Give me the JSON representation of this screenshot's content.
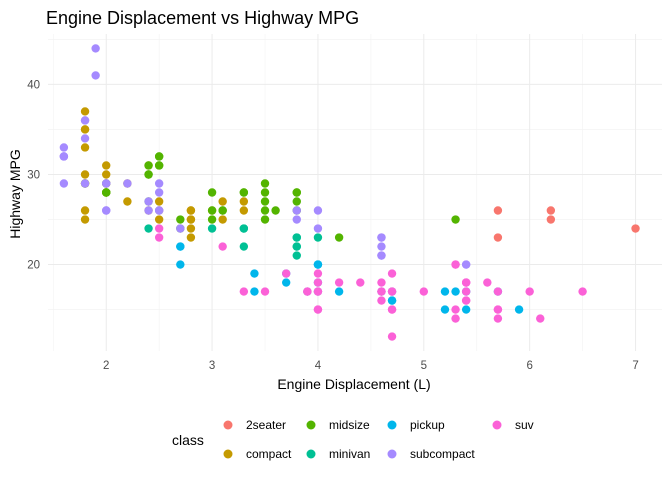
{
  "chart_data": {
    "type": "scatter",
    "title": "Engine Displacement vs Highway MPG",
    "xlabel": "Engine Displacement (L)",
    "ylabel": "Highway MPG",
    "xlim": [
      1.45,
      7.25
    ],
    "ylim": [
      10.4,
      45.6
    ],
    "x_ticks": [
      2,
      3,
      4,
      5,
      6,
      7
    ],
    "y_ticks": [
      20,
      30,
      40
    ],
    "grid": true,
    "legend": {
      "title": "class",
      "position": "bottom"
    },
    "series": [
      {
        "name": "2seater",
        "color": "#F8766D",
        "points": [
          [
            5.7,
            26
          ],
          [
            5.7,
            23
          ],
          [
            6.2,
            26
          ],
          [
            6.2,
            25
          ],
          [
            7.0,
            24
          ]
        ]
      },
      {
        "name": "compact",
        "color": "#C49A00",
        "points": [
          [
            1.8,
            29
          ],
          [
            1.8,
            29
          ],
          [
            2.0,
            31
          ],
          [
            2.0,
            30
          ],
          [
            2.8,
            26
          ],
          [
            2.8,
            26
          ],
          [
            3.1,
            27
          ],
          [
            1.8,
            26
          ],
          [
            1.8,
            25
          ],
          [
            2.0,
            28
          ],
          [
            2.0,
            28
          ],
          [
            2.8,
            25
          ],
          [
            2.8,
            25
          ],
          [
            3.1,
            25
          ],
          [
            1.8,
            30
          ],
          [
            1.8,
            33
          ],
          [
            1.8,
            35
          ],
          [
            1.8,
            37
          ],
          [
            1.8,
            35
          ],
          [
            2.0,
            29
          ],
          [
            2.0,
            29
          ],
          [
            2.8,
            23
          ],
          [
            2.8,
            24
          ],
          [
            2.2,
            27
          ],
          [
            2.2,
            29
          ],
          [
            2.4,
            31
          ],
          [
            2.4,
            26
          ],
          [
            3.0,
            26
          ],
          [
            3.3,
            26
          ],
          [
            3.3,
            27
          ],
          [
            2.5,
            25
          ],
          [
            2.5,
            27
          ],
          [
            2.5,
            26
          ]
        ]
      },
      {
        "name": "midsize",
        "color": "#53B400",
        "points": [
          [
            1.8,
            29
          ],
          [
            2.4,
            27
          ],
          [
            2.4,
            30
          ],
          [
            3.1,
            26
          ],
          [
            3.5,
            29
          ],
          [
            3.6,
            26
          ],
          [
            2.4,
            31
          ],
          [
            2.4,
            30
          ],
          [
            3.3,
            28
          ],
          [
            3.3,
            28
          ],
          [
            3.8,
            26
          ],
          [
            3.8,
            28
          ],
          [
            3.8,
            27
          ],
          [
            5.3,
            25
          ],
          [
            2.0,
            28
          ],
          [
            2.0,
            28
          ],
          [
            3.0,
            26
          ],
          [
            2.5,
            32
          ],
          [
            2.5,
            31
          ],
          [
            3.5,
            27
          ],
          [
            3.5,
            25
          ],
          [
            2.7,
            25
          ],
          [
            2.7,
            24
          ],
          [
            3.1,
            26
          ],
          [
            2.0,
            28
          ],
          [
            2.0,
            29
          ],
          [
            2.5,
            32
          ],
          [
            2.5,
            31
          ],
          [
            4.2,
            23
          ],
          [
            3.0,
            25
          ],
          [
            3.5,
            26
          ],
          [
            3.5,
            28
          ],
          [
            3.0,
            28
          ],
          [
            3.8,
            28
          ]
        ]
      },
      {
        "name": "minivan",
        "color": "#00C094",
        "points": [
          [
            2.4,
            24
          ],
          [
            3.0,
            24
          ],
          [
            3.3,
            22
          ],
          [
            3.3,
            24
          ],
          [
            3.8,
            22
          ],
          [
            3.8,
            21
          ],
          [
            3.3,
            24
          ],
          [
            3.8,
            23
          ],
          [
            3.8,
            22
          ],
          [
            3.8,
            23
          ],
          [
            4.0,
            23
          ]
        ]
      },
      {
        "name": "pickup",
        "color": "#00B6EB",
        "points": [
          [
            3.7,
            19
          ],
          [
            3.7,
            18
          ],
          [
            3.9,
            17
          ],
          [
            4.7,
            17
          ],
          [
            4.7,
            16
          ],
          [
            4.7,
            16
          ],
          [
            5.2,
            15
          ],
          [
            5.2,
            17
          ],
          [
            5.7,
            17
          ],
          [
            5.9,
            15
          ],
          [
            4.0,
            20
          ],
          [
            4.0,
            18
          ],
          [
            4.6,
            17
          ],
          [
            5.4,
            15
          ],
          [
            5.4,
            17
          ],
          [
            2.7,
            20
          ],
          [
            2.7,
            22
          ],
          [
            3.4,
            17
          ],
          [
            3.4,
            19
          ],
          [
            4.0,
            17
          ],
          [
            4.0,
            20
          ],
          [
            4.0,
            20
          ],
          [
            5.3,
            17
          ],
          [
            2.7,
            22
          ],
          [
            4.2,
            17
          ]
        ]
      },
      {
        "name": "subcompact",
        "color": "#A58AFF",
        "points": [
          [
            1.6,
            33
          ],
          [
            1.6,
            32
          ],
          [
            1.6,
            32
          ],
          [
            1.6,
            29
          ],
          [
            1.6,
            32
          ],
          [
            1.8,
            34
          ],
          [
            1.8,
            36
          ],
          [
            1.8,
            36
          ],
          [
            2.0,
            29
          ],
          [
            2.4,
            26
          ],
          [
            2.4,
            27
          ],
          [
            2.0,
            26
          ],
          [
            2.0,
            29
          ],
          [
            2.5,
            26
          ],
          [
            2.5,
            28
          ],
          [
            2.7,
            24
          ],
          [
            3.8,
            26
          ],
          [
            3.8,
            25
          ],
          [
            4.0,
            26
          ],
          [
            4.0,
            24
          ],
          [
            4.6,
            21
          ],
          [
            4.6,
            22
          ],
          [
            4.6,
            23
          ],
          [
            5.4,
            20
          ],
          [
            1.9,
            44
          ],
          [
            1.9,
            41
          ],
          [
            2.2,
            29
          ],
          [
            2.0,
            26
          ],
          [
            2.5,
            29
          ],
          [
            1.8,
            29
          ],
          [
            4.6,
            21
          ],
          [
            4.6,
            23
          ],
          [
            5.4,
            20
          ],
          [
            2.5,
            26
          ]
        ]
      },
      {
        "name": "suv",
        "color": "#FB61D7",
        "points": [
          [
            5.3,
            20
          ],
          [
            5.3,
            15
          ],
          [
            5.3,
            20
          ],
          [
            5.7,
            17
          ],
          [
            6.0,
            17
          ],
          [
            5.7,
            15
          ],
          [
            6.5,
            17
          ],
          [
            4.7,
            15
          ],
          [
            4.7,
            17
          ],
          [
            4.7,
            12
          ],
          [
            4.7,
            17
          ],
          [
            4.7,
            19
          ],
          [
            5.7,
            14
          ],
          [
            6.1,
            14
          ],
          [
            5.6,
            18
          ],
          [
            5.7,
            15
          ],
          [
            5.3,
            14
          ],
          [
            4.6,
            18
          ],
          [
            5.4,
            18
          ],
          [
            5.4,
            16
          ],
          [
            4.0,
            17
          ],
          [
            4.0,
            19
          ],
          [
            4.6,
            17
          ],
          [
            5.0,
            17
          ],
          [
            4.2,
            18
          ],
          [
            4.4,
            18
          ],
          [
            4.6,
            16
          ],
          [
            5.4,
            16
          ],
          [
            3.7,
            19
          ],
          [
            3.3,
            17
          ],
          [
            3.5,
            17
          ],
          [
            3.1,
            22
          ],
          [
            2.5,
            24
          ],
          [
            2.5,
            23
          ],
          [
            4.0,
            18
          ],
          [
            4.0,
            15
          ],
          [
            5.4,
            18
          ],
          [
            3.9,
            17
          ],
          [
            4.7,
            15
          ],
          [
            5.4,
            18
          ],
          [
            5.4,
            17
          ],
          [
            3.9,
            17
          ],
          [
            4.0,
            15
          ],
          [
            4.0,
            17
          ],
          [
            4.6,
            17
          ]
        ]
      }
    ]
  }
}
